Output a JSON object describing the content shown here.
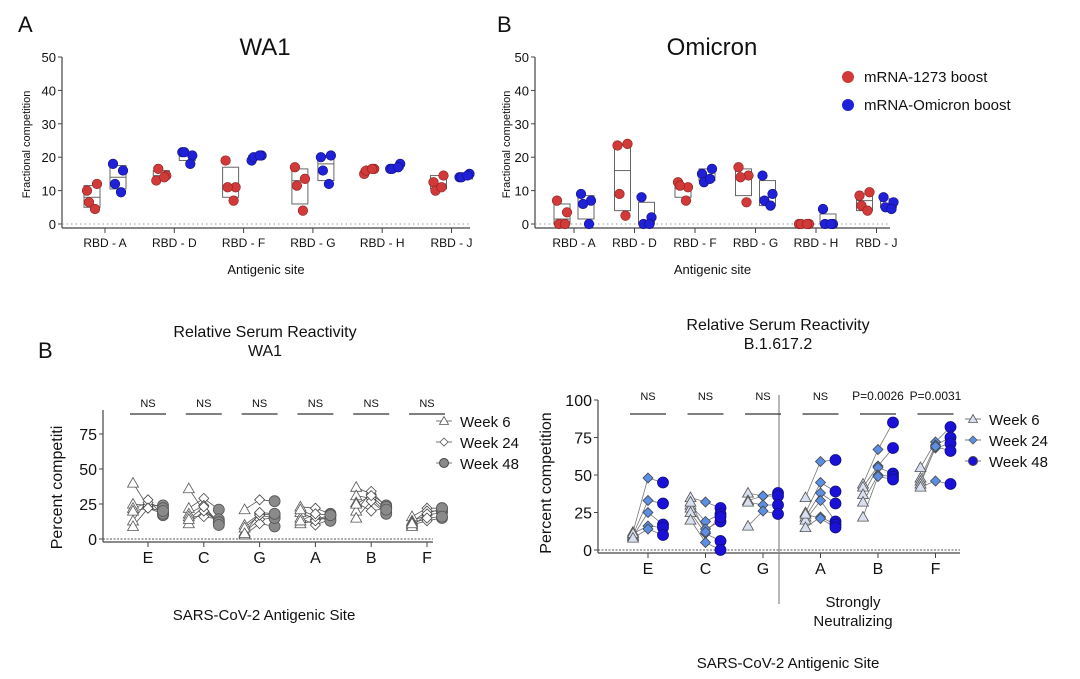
{
  "colors": {
    "mrna1273": "#d23a3a",
    "omicron": "#2020d8",
    "week6_light": "#ffffff",
    "week24_light": "#ffffff",
    "week48_gray": "#8a8a8a",
    "week6_blue": "#d8dff0",
    "week24_blue": "#5b8fe6",
    "week48_blue": "#1a10d8"
  },
  "chart_data": [
    {
      "id": "wa1",
      "type": "scatter",
      "panel_label": "A",
      "title": "WA1",
      "xlabel": "Antigenic site",
      "ylabel": "Fractional competition",
      "ylim": [
        0,
        50
      ],
      "yticks": [
        "0",
        "10",
        "20",
        "30",
        "40",
        "50"
      ],
      "categories": [
        "RBD - A",
        "RBD - D",
        "RBD - F",
        "RBD - G",
        "RBD - H",
        "RBD - J"
      ],
      "series": [
        {
          "name": "mRNA-1273 boost",
          "values": [
            [
              10,
              12,
              6.5,
              4.5
            ],
            [
              13,
              14.5,
              16.5,
              14
            ],
            [
              19,
              11,
              11,
              7
            ],
            [
              17,
              13.5,
              11.5,
              4
            ],
            [
              15,
              16.5,
              16,
              16.5
            ],
            [
              12.5,
              14.5,
              10,
              11
            ]
          ],
          "boxes": [
            [
              5,
              8,
              11.5
            ],
            [
              13.5,
              14.5,
              16
            ],
            [
              8,
              11,
              17
            ],
            [
              6,
              13,
              16.5
            ],
            [
              15.5,
              16,
              16.5
            ],
            [
              10.5,
              12,
              14.5
            ]
          ]
        },
        {
          "name": "mRNA-Omicron boost",
          "values": [
            [
              18,
              16,
              12,
              9.5
            ],
            [
              21.5,
              20.5,
              21.5,
              18
            ],
            [
              19,
              20.5,
              20,
              20.5
            ],
            [
              20,
              20.5,
              16,
              12
            ],
            [
              16.5,
              18,
              16.5,
              17
            ],
            [
              14,
              15,
              14,
              14.5
            ]
          ],
          "boxes": [
            [
              10.5,
              14,
              17.5
            ],
            [
              19,
              20.5,
              21.5
            ],
            [
              19.5,
              20,
              20.5
            ],
            [
              13,
              18,
              20.5
            ],
            [
              16.5,
              17,
              17.5
            ],
            [
              13.5,
              14.5,
              15
            ]
          ]
        }
      ]
    },
    {
      "id": "omicron",
      "type": "scatter",
      "panel_label": "B",
      "title": "Omicron",
      "xlabel": "Antigenic site",
      "ylabel": "Fractional competition",
      "ylim": [
        0,
        50
      ],
      "yticks": [
        "0",
        "10",
        "20",
        "30",
        "40",
        "50"
      ],
      "categories": [
        "RBD - A",
        "RBD - D",
        "RBD - F",
        "RBD - G",
        "RBD - H",
        "RBD - J"
      ],
      "legend": {
        "position": "top-right",
        "entries": [
          "mRNA-1273 boost",
          "mRNA-Omicron boost"
        ]
      },
      "series": [
        {
          "name": "mRNA-1273 boost",
          "values": [
            [
              7,
              3.5,
              0,
              0
            ],
            [
              23.5,
              24,
              9,
              2.5
            ],
            [
              12.5,
              11,
              11.5,
              7
            ],
            [
              17,
              14.5,
              14,
              6.5
            ],
            [
              0,
              0,
              0,
              0
            ],
            [
              8.5,
              9.5,
              5.5,
              4
            ]
          ],
          "boxes": [
            [
              0,
              1.5,
              6
            ],
            [
              4,
              16,
              24
            ],
            [
              8,
              10.5,
              12
            ],
            [
              8.5,
              14,
              16.5
            ],
            [
              0,
              0,
              0
            ],
            [
              4,
              7,
              9
            ]
          ]
        },
        {
          "name": "mRNA-Omicron boost",
          "values": [
            [
              9,
              7,
              6,
              0
            ],
            [
              8,
              2,
              0,
              0
            ],
            [
              15,
              16.5,
              12.5,
              13.5
            ],
            [
              14.5,
              9,
              7,
              5.5
            ],
            [
              4.5,
              0,
              0,
              0
            ],
            [
              8,
              6.5,
              5,
              4.5
            ]
          ],
          "boxes": [
            [
              1.5,
              6,
              8.5
            ],
            [
              0,
              0.5,
              6.5
            ],
            [
              13,
              14,
              16.5
            ],
            [
              5.5,
              8,
              13
            ],
            [
              0,
              0,
              3
            ],
            [
              5,
              6,
              7.5
            ]
          ]
        }
      ]
    },
    {
      "id": "rsr-wa1",
      "type": "line",
      "panel_label": "B",
      "title": "Relative Serum Reactivity",
      "subtitle": "WA1",
      "xlabel": "SARS-CoV-2 Antigenic Site",
      "ylabel": "Percent competiti",
      "ylim": [
        0,
        85
      ],
      "yticks": [
        "0",
        "25",
        "50",
        "75"
      ],
      "categories": [
        "E",
        "C",
        "G",
        "A",
        "B",
        "F"
      ],
      "annotations": [
        "NS",
        "NS",
        "NS",
        "NS",
        "NS",
        "NS"
      ],
      "legend": {
        "position": "right",
        "entries": [
          "Week 6",
          "Week 24",
          "Week 48"
        ]
      },
      "subjects": [
        [
          [
            40,
            23,
            19
          ],
          [
            25,
            24,
            24
          ],
          [
            22,
            26,
            22
          ],
          [
            13,
            28,
            17
          ],
          [
            9,
            22,
            18
          ],
          [
            20,
            22,
            20
          ]
        ],
        [
          [
            36,
            20,
            13
          ],
          [
            22,
            29,
            21
          ],
          [
            18,
            24,
            11
          ],
          [
            16,
            16,
            14
          ],
          [
            11,
            20,
            12
          ],
          [
            14,
            23,
            10
          ]
        ],
        [
          [
            21,
            28,
            27
          ],
          [
            10,
            18,
            17
          ],
          [
            5,
            14,
            15
          ],
          [
            3,
            11,
            9
          ],
          [
            8,
            17,
            15
          ],
          [
            4,
            19,
            18
          ]
        ],
        [
          [
            23,
            22,
            18
          ],
          [
            19,
            14,
            17
          ],
          [
            15,
            10,
            14
          ],
          [
            11,
            13,
            16
          ],
          [
            21,
            16,
            13
          ],
          [
            13,
            18,
            17
          ]
        ],
        [
          [
            37,
            32,
            24
          ],
          [
            31,
            29,
            19
          ],
          [
            26,
            20,
            22
          ],
          [
            20,
            34,
            23
          ],
          [
            15,
            27,
            18
          ],
          [
            25,
            31,
            21
          ]
        ],
        [
          [
            16,
            22,
            22
          ],
          [
            13,
            17,
            19
          ],
          [
            10,
            13,
            15
          ],
          [
            12,
            20,
            20
          ],
          [
            9,
            18,
            22
          ],
          [
            11,
            15,
            16
          ]
        ]
      ]
    },
    {
      "id": "rsr-b16172",
      "type": "line",
      "title": "Relative Serum Reactivity",
      "subtitle": "B.1.617.2",
      "xlabel": "SARS-CoV-2 Antigenic Site",
      "ylabel": "Percent competition",
      "ylim": [
        0,
        100
      ],
      "yticks": [
        "0",
        "25",
        "50",
        "75",
        "100"
      ],
      "categories": [
        "E",
        "C",
        "G",
        "A",
        "B",
        "F"
      ],
      "group_label": "Strongly\nNeutralizing",
      "group_label_lines": [
        "Strongly",
        "Neutralizing"
      ],
      "annotations": [
        "NS",
        "NS",
        "NS",
        "NS",
        "P=0.0026",
        "P=0.0031"
      ],
      "legend": {
        "position": "right",
        "entries": [
          "Week 6",
          "Week 24",
          "Week 48"
        ]
      },
      "subjects": [
        [
          [
            12,
            48,
            45
          ],
          [
            10,
            33,
            31
          ],
          [
            9,
            25,
            17
          ],
          [
            11,
            16,
            15
          ],
          [
            8,
            14,
            10
          ]
        ],
        [
          [
            35,
            32,
            28
          ],
          [
            30,
            19,
            24
          ],
          [
            28,
            14,
            19
          ],
          [
            25,
            11,
            6
          ],
          [
            20,
            5,
            0
          ],
          [
            32,
            12,
            22
          ]
        ],
        [
          [
            38,
            36,
            38
          ],
          [
            33,
            36,
            36
          ],
          [
            32,
            30,
            30
          ],
          [
            16,
            26,
            24
          ]
        ],
        [
          [
            35,
            59,
            60
          ],
          [
            25,
            45,
            39
          ],
          [
            22,
            38,
            31
          ],
          [
            20,
            33,
            19
          ],
          [
            15,
            22,
            17
          ],
          [
            24,
            21,
            15
          ]
        ],
        [
          [
            44,
            67,
            85
          ],
          [
            42,
            56,
            68
          ],
          [
            37,
            55,
            51
          ],
          [
            32,
            50,
            49
          ],
          [
            22,
            49,
            47
          ]
        ],
        [
          [
            55,
            72,
            82
          ],
          [
            48,
            70,
            75
          ],
          [
            46,
            68,
            71
          ],
          [
            44,
            69,
            66
          ],
          [
            42,
            46,
            44
          ]
        ]
      ]
    }
  ]
}
